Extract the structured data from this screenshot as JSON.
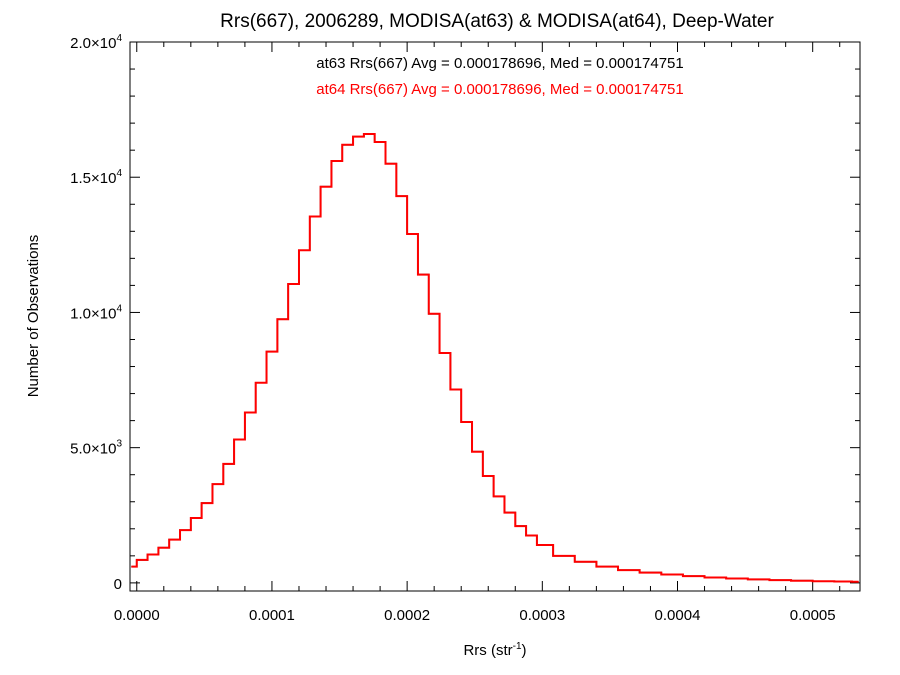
{
  "chart_data": {
    "type": "histogram",
    "title": "Rrs(667), 2006289, MODISA(at63) & MODISA(at64), Deep-Water",
    "xlabel": {
      "base": "Rrs (str",
      "sup": "-1",
      "close": ")"
    },
    "ylabel": "Number of Observations",
    "xlim": [
      -5e-06,
      0.000535
    ],
    "ylim": [
      -300,
      20000
    ],
    "x_ticks": [
      {
        "value": 0.0,
        "label": "0.0000"
      },
      {
        "value": 0.0001,
        "label": "0.0001"
      },
      {
        "value": 0.0002,
        "label": "0.0002"
      },
      {
        "value": 0.0003,
        "label": "0.0003"
      },
      {
        "value": 0.0004,
        "label": "0.0004"
      },
      {
        "value": 0.0005,
        "label": "0.0005"
      }
    ],
    "y_ticks": [
      {
        "value": 0,
        "mant": "0",
        "exp": ""
      },
      {
        "value": 5000,
        "mant": "5.0×10",
        "exp": "3"
      },
      {
        "value": 10000,
        "mant": "1.0×10",
        "exp": "4"
      },
      {
        "value": 15000,
        "mant": "1.5×10",
        "exp": "4"
      },
      {
        "value": 20000,
        "mant": "2.0×10",
        "exp": "4"
      }
    ],
    "annotations": [
      {
        "text": "at63 Rrs(667) Avg = 0.000178696, Med = 0.000174751",
        "color": "#000000"
      },
      {
        "text": "at64 Rrs(667) Avg = 0.000178696, Med = 0.000174751",
        "color": "#ff0000"
      }
    ],
    "series": [
      {
        "name": "at63",
        "color": "#000000",
        "x": [
          -4e-06,
          4e-06,
          1.2e-05,
          2e-05,
          2.8e-05,
          3.6e-05,
          4.4e-05,
          5.2e-05,
          6e-05,
          6.8e-05,
          7.6e-05,
          8.4e-05,
          9.2e-05,
          0.0001,
          0.000108,
          0.000116,
          0.000124,
          0.000132,
          0.00014,
          0.000148,
          0.000156,
          0.000164,
          0.000172,
          0.00018,
          0.000188,
          0.000196,
          0.000204,
          0.000212,
          0.00022,
          0.000228,
          0.000236,
          0.000244,
          0.000252,
          0.00026,
          0.000268,
          0.000276,
          0.000284,
          0.000292,
          0.0003,
          0.000316,
          0.000332,
          0.000348,
          0.000364,
          0.00038,
          0.000396,
          0.000412,
          0.000428,
          0.000444,
          0.00046,
          0.000476,
          0.000492,
          0.000508,
          0.000524,
          0.000534
        ],
        "y": [
          600,
          850,
          1050,
          1300,
          1600,
          1950,
          2400,
          2950,
          3650,
          4400,
          5300,
          6300,
          7400,
          8550,
          9750,
          11050,
          12300,
          13550,
          14650,
          15600,
          16200,
          16500,
          16600,
          16300,
          15500,
          14300,
          12900,
          11400,
          9950,
          8500,
          7150,
          5950,
          4850,
          3950,
          3200,
          2600,
          2100,
          1750,
          1400,
          1000,
          780,
          600,
          470,
          380,
          310,
          250,
          200,
          160,
          130,
          100,
          80,
          60,
          50,
          40
        ]
      },
      {
        "name": "at64",
        "color": "#ff0000",
        "x": [
          -4e-06,
          4e-06,
          1.2e-05,
          2e-05,
          2.8e-05,
          3.6e-05,
          4.4e-05,
          5.2e-05,
          6e-05,
          6.8e-05,
          7.6e-05,
          8.4e-05,
          9.2e-05,
          0.0001,
          0.000108,
          0.000116,
          0.000124,
          0.000132,
          0.00014,
          0.000148,
          0.000156,
          0.000164,
          0.000172,
          0.00018,
          0.000188,
          0.000196,
          0.000204,
          0.000212,
          0.00022,
          0.000228,
          0.000236,
          0.000244,
          0.000252,
          0.00026,
          0.000268,
          0.000276,
          0.000284,
          0.000292,
          0.0003,
          0.000316,
          0.000332,
          0.000348,
          0.000364,
          0.00038,
          0.000396,
          0.000412,
          0.000428,
          0.000444,
          0.00046,
          0.000476,
          0.000492,
          0.000508,
          0.000524,
          0.000534
        ],
        "y": [
          600,
          850,
          1050,
          1300,
          1600,
          1950,
          2400,
          2950,
          3650,
          4400,
          5300,
          6300,
          7400,
          8550,
          9750,
          11050,
          12300,
          13550,
          14650,
          15600,
          16200,
          16500,
          16600,
          16300,
          15500,
          14300,
          12900,
          11400,
          9950,
          8500,
          7150,
          5950,
          4850,
          3950,
          3200,
          2600,
          2100,
          1750,
          1400,
          1000,
          780,
          600,
          470,
          380,
          310,
          250,
          200,
          160,
          130,
          100,
          80,
          60,
          50,
          40
        ]
      }
    ]
  }
}
